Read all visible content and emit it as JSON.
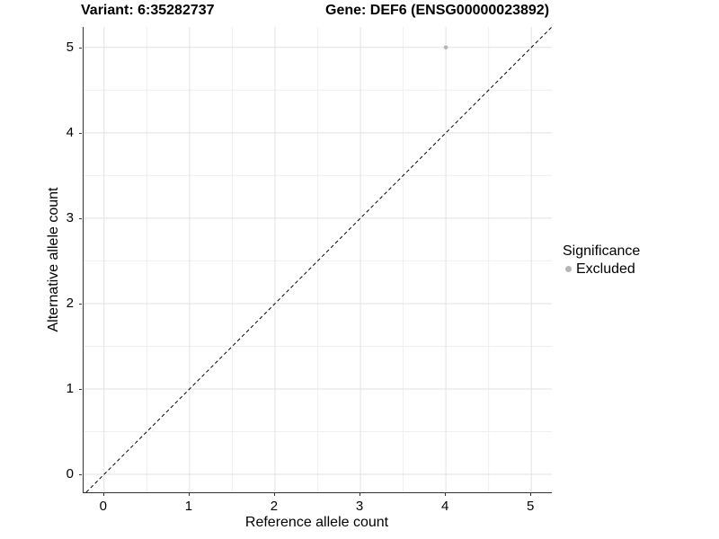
{
  "titles": {
    "variant": "Variant: 6:35282737",
    "gene": "Gene: DEF6 (ENSG00000023892)"
  },
  "legend": {
    "title": "Significance",
    "items": [
      {
        "label": "Excluded",
        "color": "#b5b5b5"
      }
    ]
  },
  "chart_data": {
    "type": "scatter",
    "title": "Variant: 6:35282737  Gene: DEF6 (ENSG00000023892)",
    "xlabel": "Reference allele count",
    "ylabel": "Alternative allele count",
    "x_ticks": [
      0,
      1,
      2,
      3,
      4,
      5
    ],
    "y_ticks": [
      0,
      1,
      2,
      3,
      4,
      5
    ],
    "xlim": [
      -0.24,
      5.24
    ],
    "ylim": [
      -0.21,
      5.24
    ],
    "grid": "major+minor",
    "legend_position": "right",
    "series": [
      {
        "name": "Excluded",
        "color": "#b5b5b5",
        "points": [
          {
            "x": 4,
            "y": 5
          }
        ]
      }
    ],
    "reference_line": {
      "kind": "identity",
      "equation": "y = x",
      "style": "dashed",
      "color": "#000000"
    }
  },
  "style_colors": {
    "grid_major": "#e2e2e2",
    "grid_minor": "#efefef",
    "axis_line": "#333333",
    "point": "#b5b5b5",
    "background": "#ffffff"
  }
}
